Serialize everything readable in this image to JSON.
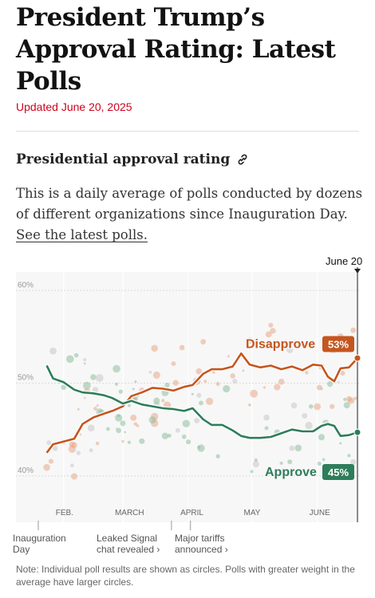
{
  "headline": "President Trump’s Approval Rating: Latest Polls",
  "updated": "Updated June 20, 2025",
  "section_title": "Presidential approval rating",
  "description_text": "This is a daily average of polls conducted by dozens of different organizations since Inauguration Day. ",
  "description_link": "See the latest polls.",
  "icons": {
    "link": "link-icon"
  },
  "colors": {
    "approve": "#2e7d5b",
    "disapprove": "#c4561f",
    "approve_dots": "#8fbf9f",
    "disapprove_dots": "#e8a98a",
    "neutral_dots": "#c9c9c9"
  },
  "chart_data": {
    "type": "line",
    "date_range": [
      "2025-01-20",
      "2025-06-20"
    ],
    "ylim": [
      35,
      62
    ],
    "y_ticks": [
      40,
      50,
      60
    ],
    "y_tick_labels": [
      "40%",
      "50%",
      "60%"
    ],
    "x_ticks": [
      "2025-02-01",
      "2025-03-01",
      "2025-04-01",
      "2025-05-01",
      "2025-06-01"
    ],
    "x_tick_labels": [
      "FEB.",
      "MARCH",
      "APRIL",
      "MAY",
      "JUNE"
    ],
    "end_label": "June 20",
    "series": [
      {
        "name": "Disapprove",
        "current_label": "53%",
        "points": [
          [
            "2025-01-24",
            42.5
          ],
          [
            "2025-01-27",
            43.4
          ],
          [
            "2025-02-01",
            43.7
          ],
          [
            "2025-02-06",
            44.0
          ],
          [
            "2025-02-10",
            45.6
          ],
          [
            "2025-02-15",
            46.3
          ],
          [
            "2025-02-20",
            46.7
          ],
          [
            "2025-02-24",
            47.0
          ],
          [
            "2025-03-01",
            47.5
          ],
          [
            "2025-03-05",
            48.6
          ],
          [
            "2025-03-10",
            49.0
          ],
          [
            "2025-03-15",
            49.5
          ],
          [
            "2025-03-20",
            49.4
          ],
          [
            "2025-03-25",
            49.2
          ],
          [
            "2025-03-30",
            49.6
          ],
          [
            "2025-04-03",
            49.8
          ],
          [
            "2025-04-08",
            51.0
          ],
          [
            "2025-04-12",
            51.5
          ],
          [
            "2025-04-17",
            51.5
          ],
          [
            "2025-04-22",
            51.8
          ],
          [
            "2025-04-26",
            53.2
          ],
          [
            "2025-04-30",
            52.0
          ],
          [
            "2025-05-05",
            51.7
          ],
          [
            "2025-05-10",
            51.9
          ],
          [
            "2025-05-15",
            51.5
          ],
          [
            "2025-05-20",
            51.8
          ],
          [
            "2025-05-25",
            51.4
          ],
          [
            "2025-05-30",
            52.0
          ],
          [
            "2025-06-03",
            51.9
          ],
          [
            "2025-06-06",
            50.7
          ],
          [
            "2025-06-09",
            50.2
          ],
          [
            "2025-06-12",
            51.6
          ],
          [
            "2025-06-16",
            51.7
          ],
          [
            "2025-06-20",
            52.7
          ]
        ]
      },
      {
        "name": "Approve",
        "current_label": "45%",
        "points": [
          [
            "2025-01-24",
            51.9
          ],
          [
            "2025-01-27",
            50.5
          ],
          [
            "2025-02-01",
            50.1
          ],
          [
            "2025-02-06",
            49.3
          ],
          [
            "2025-02-10",
            49.0
          ],
          [
            "2025-02-15",
            48.9
          ],
          [
            "2025-02-20",
            48.7
          ],
          [
            "2025-02-24",
            48.4
          ],
          [
            "2025-03-01",
            47.8
          ],
          [
            "2025-03-05",
            48.1
          ],
          [
            "2025-03-10",
            47.7
          ],
          [
            "2025-03-15",
            47.5
          ],
          [
            "2025-03-20",
            47.3
          ],
          [
            "2025-03-25",
            47.2
          ],
          [
            "2025-03-30",
            47.0
          ],
          [
            "2025-04-03",
            47.3
          ],
          [
            "2025-04-08",
            46.1
          ],
          [
            "2025-04-12",
            45.5
          ],
          [
            "2025-04-17",
            45.5
          ],
          [
            "2025-04-22",
            44.9
          ],
          [
            "2025-04-26",
            44.3
          ],
          [
            "2025-04-30",
            44.1
          ],
          [
            "2025-05-05",
            44.1
          ],
          [
            "2025-05-10",
            44.2
          ],
          [
            "2025-05-15",
            44.6
          ],
          [
            "2025-05-20",
            45.0
          ],
          [
            "2025-05-25",
            44.8
          ],
          [
            "2025-05-30",
            44.8
          ],
          [
            "2025-06-03",
            45.4
          ],
          [
            "2025-06-06",
            45.6
          ],
          [
            "2025-06-09",
            45.4
          ],
          [
            "2025-06-12",
            44.3
          ],
          [
            "2025-06-16",
            44.4
          ],
          [
            "2025-06-20",
            44.7
          ]
        ]
      }
    ],
    "annotations": [
      {
        "date": "2025-01-20",
        "text_lines": [
          "Inauguration",
          "Day"
        ]
      },
      {
        "date": "2025-03-24",
        "text_lines": [
          "Leaked Signal",
          "chat revealed ›"
        ]
      },
      {
        "date": "2025-04-02",
        "text_lines": [
          "Major tariffs",
          "announced ›"
        ]
      }
    ]
  },
  "note": "Note: Individual poll results are shown as circles. Polls with greater weight in the average have larger circles."
}
